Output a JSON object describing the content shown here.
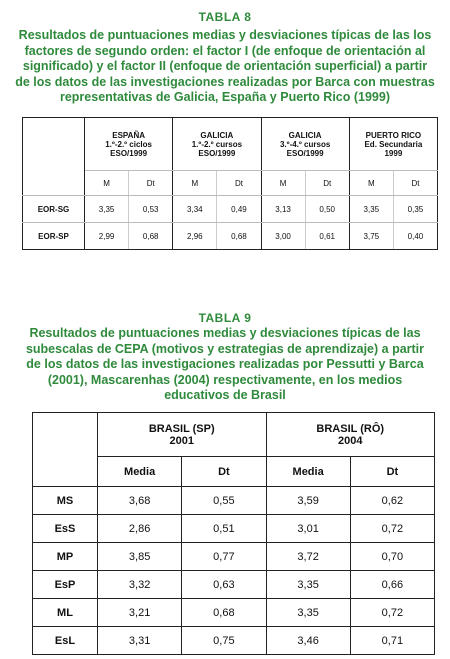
{
  "tables": [
    {
      "heading": "TABLA 8",
      "title": [
        "Resultados de puntuaciones medias y desviaciones típicas de las los",
        "factores de segundo orden: el factor I (de enfoque de orientación al",
        "significado) y el factor II (enfoque de orientación superficial) a partir",
        "de los datos de las investigaciones realizadas por Barca con muestras",
        "representativas de Galicia, España y Puerto Rico (1999)"
      ],
      "groups": [
        [
          "ESPAÑA",
          "1.º-2.º ciclos",
          "ESO/1999"
        ],
        [
          "GALICIA",
          "1.º-2.º cursos",
          "ESO/1999"
        ],
        [
          "GALICIA",
          "3.º-4.º cursos",
          "ESO/1999"
        ],
        [
          "PUERTO RICO",
          "Ed. Secundaria",
          "1999"
        ]
      ],
      "subheaders": [
        "M",
        "Dt",
        "M",
        "Dt",
        "M",
        "Dt",
        "M",
        "Dt"
      ],
      "rows": [
        {
          "label": "EOR-SG",
          "values": [
            "3,35",
            "0,53",
            "3,34",
            "0,49",
            "3,13",
            "0,50",
            "3,35",
            "0,35"
          ]
        },
        {
          "label": "EOR-SP",
          "values": [
            "2,99",
            "0,68",
            "2,96",
            "0,68",
            "3,00",
            "0,61",
            "3,75",
            "0,40"
          ]
        }
      ]
    },
    {
      "heading": "TABLA 9",
      "title": [
        "Resultados de puntuaciones medias y desviaciones típicas de las",
        "subescalas de CEPA (motivos y estrategias de aprendizaje) a partir",
        "de los datos de las investigaciones realizadas por Pessutti y Barca",
        "(2001), Mascarenhas (2004) respectivamente, en los medios",
        "educativos de Brasil"
      ],
      "groups": [
        [
          "BRASIL (SP)",
          "2001"
        ],
        [
          "BRASIL (RÔ)",
          "2004"
        ]
      ],
      "subheaders": [
        "Media",
        "Dt",
        "Media",
        "Dt"
      ],
      "rows": [
        {
          "label": "MS",
          "values": [
            "3,68",
            "0,55",
            "3,59",
            "0,62"
          ]
        },
        {
          "label": "EsS",
          "values": [
            "2,86",
            "0,51",
            "3,01",
            "0,72"
          ]
        },
        {
          "label": "MP",
          "values": [
            "3,85",
            "0,77",
            "3,72",
            "0,70"
          ]
        },
        {
          "label": "EsP",
          "values": [
            "3,32",
            "0,63",
            "3,35",
            "0,66"
          ]
        },
        {
          "label": "ML",
          "values": [
            "3,21",
            "0,68",
            "3,35",
            "0,72"
          ]
        },
        {
          "label": "EsL",
          "values": [
            "3,31",
            "0,75",
            "3,46",
            "0,71"
          ]
        }
      ]
    }
  ]
}
